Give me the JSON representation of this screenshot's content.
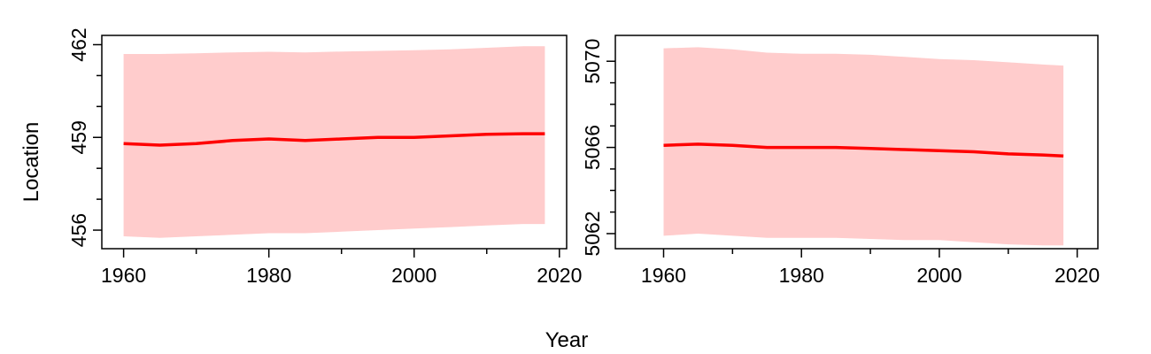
{
  "figure": {
    "xlabel": "Year",
    "ylabel": "Location"
  },
  "chart_data": [
    {
      "type": "area",
      "xlim": [
        1957,
        2021
      ],
      "ylim": [
        455.4,
        462.3
      ],
      "x_ticks": [
        1960,
        1980,
        2000,
        2020
      ],
      "x_minor_ticks": [
        1970,
        1990,
        2010
      ],
      "y_ticks": [
        456,
        459,
        462
      ],
      "y_minor_ticks": [
        457,
        458,
        460,
        461
      ],
      "colors": {
        "line": "#ff0000",
        "band": "#ffcccc"
      },
      "series": [
        {
          "x": [
            1960,
            1965,
            1970,
            1975,
            1980,
            1985,
            1990,
            1995,
            2000,
            2005,
            2010,
            2015,
            2018
          ],
          "y": [
            458.8,
            458.75,
            458.8,
            458.9,
            458.95,
            458.9,
            458.95,
            459.0,
            459.0,
            459.05,
            459.1,
            459.12,
            459.12
          ],
          "lower": [
            455.8,
            455.75,
            455.8,
            455.85,
            455.9,
            455.9,
            455.95,
            456.0,
            456.05,
            456.1,
            456.15,
            456.2,
            456.2
          ],
          "upper": [
            461.7,
            461.7,
            461.72,
            461.75,
            461.77,
            461.75,
            461.78,
            461.8,
            461.82,
            461.85,
            461.9,
            461.95,
            461.95
          ]
        }
      ]
    },
    {
      "type": "area",
      "xlim": [
        1953,
        2023
      ],
      "ylim": [
        5061.3,
        5071.2
      ],
      "x_ticks": [
        1960,
        1980,
        2000,
        2020
      ],
      "x_minor_ticks": [
        1970,
        1990,
        2010
      ],
      "y_ticks": [
        5062,
        5066,
        5070
      ],
      "y_minor_ticks": [
        5063,
        5064,
        5065,
        5067,
        5068,
        5069
      ],
      "colors": {
        "line": "#ff0000",
        "band": "#ffcccc"
      },
      "series": [
        {
          "x": [
            1960,
            1965,
            1970,
            1975,
            1980,
            1985,
            1990,
            1995,
            2000,
            2005,
            2010,
            2015,
            2018
          ],
          "y": [
            5066.1,
            5066.15,
            5066.1,
            5066.0,
            5066.0,
            5066.0,
            5065.95,
            5065.9,
            5065.85,
            5065.8,
            5065.7,
            5065.65,
            5065.6
          ],
          "lower": [
            5061.9,
            5062.0,
            5061.9,
            5061.8,
            5061.8,
            5061.8,
            5061.75,
            5061.7,
            5061.7,
            5061.6,
            5061.5,
            5061.45,
            5061.45
          ],
          "upper": [
            5070.6,
            5070.65,
            5070.55,
            5070.4,
            5070.35,
            5070.35,
            5070.3,
            5070.2,
            5070.1,
            5070.05,
            5069.95,
            5069.85,
            5069.8
          ]
        }
      ]
    }
  ]
}
